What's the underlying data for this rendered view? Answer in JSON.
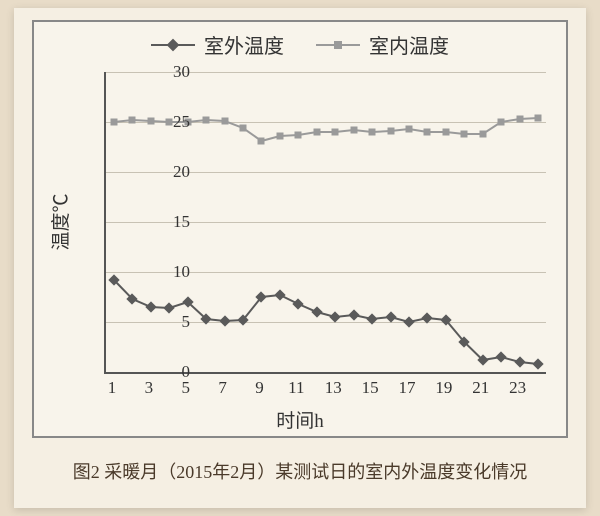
{
  "caption": "图2 采暖月（2015年2月）某测试日的室内外温度变化情况",
  "chart": {
    "type": "line",
    "background_color": "#f8f4eb",
    "grid_color": "#c8c2b4",
    "axis_color": "#555555",
    "ylabel": "温度℃",
    "xlabel": "时间h",
    "label_fontsize": 19,
    "tick_fontsize": 17,
    "ylim": [
      0,
      30
    ],
    "ytick_step": 5,
    "xticks": [
      1,
      3,
      5,
      7,
      9,
      11,
      13,
      15,
      17,
      19,
      21,
      23
    ],
    "x_values": [
      1,
      2,
      3,
      4,
      5,
      6,
      7,
      8,
      9,
      10,
      11,
      12,
      13,
      14,
      15,
      16,
      17,
      18,
      19,
      20,
      21,
      22,
      23,
      24
    ],
    "legend": {
      "position": "top",
      "items": [
        {
          "label": "室外温度",
          "marker": "diamond",
          "color": "#5a5a5a"
        },
        {
          "label": "室内温度",
          "marker": "square",
          "color": "#9a9a9a"
        }
      ]
    },
    "series": [
      {
        "name": "室外温度",
        "marker": "diamond",
        "marker_size": 8,
        "line_width": 2,
        "color": "#5a5a5a",
        "values": [
          9.2,
          7.3,
          6.5,
          6.4,
          7.0,
          5.3,
          5.1,
          5.2,
          7.5,
          7.7,
          6.8,
          6.0,
          5.5,
          5.7,
          5.3,
          5.5,
          5.0,
          5.4,
          5.2,
          3.0,
          1.2,
          1.5,
          1.0,
          0.8
        ]
      },
      {
        "name": "室内温度",
        "marker": "square",
        "marker_size": 7,
        "line_width": 2,
        "color": "#9a9a9a",
        "values": [
          25.0,
          25.2,
          25.1,
          25.0,
          25.0,
          25.2,
          25.1,
          24.4,
          23.1,
          23.6,
          23.7,
          24.0,
          24.0,
          24.2,
          24.0,
          24.1,
          24.3,
          24.0,
          24.0,
          23.8,
          23.8,
          25.0,
          25.3,
          25.4
        ]
      }
    ]
  }
}
